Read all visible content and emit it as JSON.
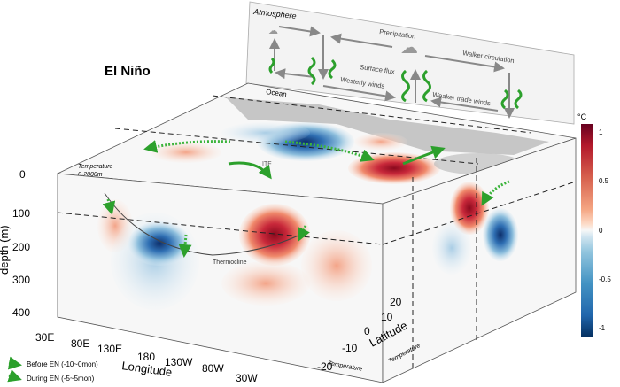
{
  "title": "El Niño",
  "atmosphere": {
    "label": "Atmosphere",
    "precipitation": "Precipitation",
    "walker": "Walker circulation",
    "surface_flux": "Surface flux",
    "westerly": "Westerly winds",
    "weaker_trade": "Weaker trade winds"
  },
  "ocean": {
    "label": "Ocean",
    "temperature_layer": "Temperature",
    "temperature_range": "0-2000m",
    "itf": "ITF",
    "thermocline": "Thermocline",
    "front_face_label": "Temperature",
    "side_face_label": "Temperature"
  },
  "depth_axis": {
    "label": "depth (m)",
    "ticks": [
      "0",
      "100",
      "200",
      "300",
      "400"
    ]
  },
  "longitude_axis": {
    "label": "Longitude",
    "ticks": [
      "30E",
      "80E",
      "130E",
      "180",
      "130W",
      "80W",
      "30W"
    ]
  },
  "latitude_axis": {
    "label": "Latitude",
    "ticks": [
      "-20",
      "-10",
      "0",
      "10",
      "20"
    ]
  },
  "colorbar": {
    "unit": "°C",
    "ticks": [
      "1",
      "0.5",
      "0",
      "-0.5",
      "-1"
    ],
    "colors": [
      "#67001f",
      "#b2182b",
      "#d6604d",
      "#f4a582",
      "#fddbc7",
      "#f7f7f7",
      "#d1e5f0",
      "#92c5de",
      "#4393c3",
      "#2166ac",
      "#053061"
    ]
  },
  "legend": [
    {
      "label": "Before EN (-10~0mon)",
      "style": "dotted",
      "color": "#3cb43c"
    },
    {
      "label": "During EN (-5~5mon)",
      "style": "solid",
      "color": "#2ca02c"
    }
  ]
}
